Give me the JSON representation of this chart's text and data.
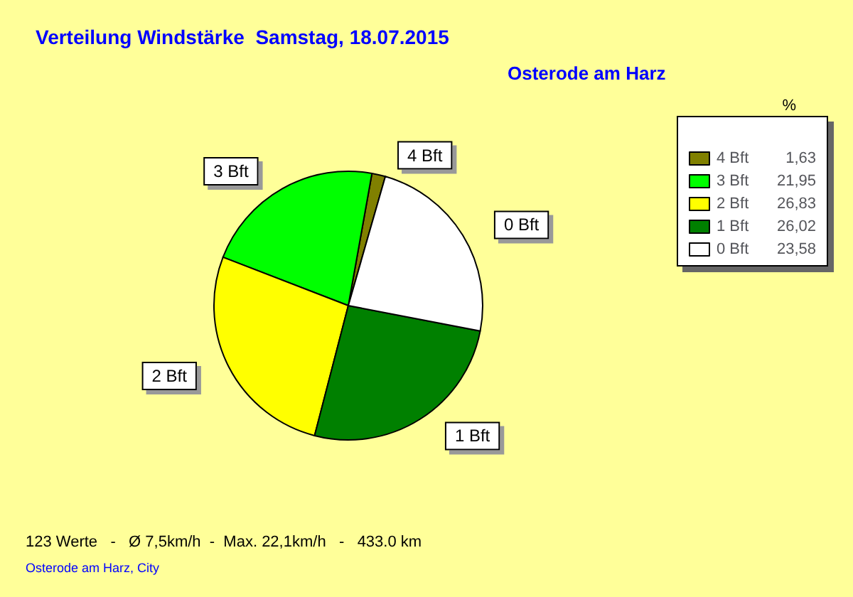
{
  "chart_data": {
    "type": "pie",
    "title": "Verteilung Windstärke  Samstag, 18.07.2015",
    "subtitle": "Osterode am Harz",
    "legend_title": "%",
    "categories": [
      "4 Bft",
      "3 Bft",
      "2 Bft",
      "1 Bft",
      "0 Bft"
    ],
    "values": [
      1.63,
      21.95,
      26.83,
      26.02,
      23.58
    ],
    "value_labels": [
      "1,63",
      "21,95",
      "26,83",
      "26,02",
      "23,58"
    ],
    "colors": [
      "#808000",
      "#00ff00",
      "#ffff00",
      "#008000",
      "#ffffff"
    ],
    "legend": "top right",
    "annotations": [
      "123 Werte   -   Ø 7,5km/h  -  Max. 22,1km/h   -   433.0 km",
      "Osterode am Harz, City"
    ]
  }
}
